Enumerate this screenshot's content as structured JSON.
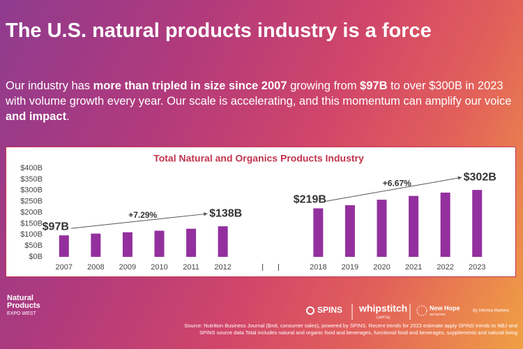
{
  "header": {
    "title": "The U.S. natural products industry is a force"
  },
  "paragraph": [
    {
      "text": "Our industry has ",
      "bold": false
    },
    {
      "text": "more than tripled in size since 2007",
      "bold": true
    },
    {
      "text": " growing from ",
      "bold": false
    },
    {
      "text": "$97B",
      "bold": true
    },
    {
      "text": " to over $300B in 2023 with volume growth every year.  Our scale is accelerating, and this momentum can amplify our voice ",
      "bold": false
    },
    {
      "text": "and impact",
      "bold": true
    },
    {
      "text": ".",
      "bold": false
    }
  ],
  "chart_data": {
    "type": "bar",
    "title": "Total Natural and Organics Products Industry",
    "categories": [
      "2007",
      "2008",
      "2009",
      "2010",
      "2011",
      "2012",
      null,
      null,
      "2018",
      "2019",
      "2020",
      "2021",
      "2022",
      "2023"
    ],
    "values": [
      97,
      105,
      111,
      118,
      127,
      138,
      null,
      null,
      219,
      233,
      258,
      275,
      290,
      302
    ],
    "value_labels": [
      "$97B",
      null,
      null,
      null,
      null,
      "$138B",
      null,
      null,
      "$219B",
      null,
      null,
      null,
      null,
      "$302B"
    ],
    "annotations": [
      "+7.29%",
      "+6.67%"
    ],
    "color": "#93309e",
    "ylim": [
      0,
      400
    ],
    "yticks": [
      {
        "value": 0,
        "label": "$0B"
      },
      {
        "value": 50,
        "label": "$50B"
      },
      {
        "value": 100,
        "label": "$100B"
      },
      {
        "value": 150,
        "label": "$150B"
      },
      {
        "value": 200,
        "label": "$200B"
      },
      {
        "value": 250,
        "label": "$250B"
      },
      {
        "value": 300,
        "label": "$300B"
      },
      {
        "value": 350,
        "label": "$350B"
      },
      {
        "value": 400,
        "label": "$400B"
      }
    ],
    "grid": false
  },
  "logos": {
    "expo_line1": "Natural",
    "expo_line2": "Products",
    "expo_line3": "EXPO WEST",
    "spins": "SPINS",
    "whipstitch": "whipstitch",
    "whipstitch_sub": "CAPITAL",
    "newhope": "New Hope",
    "newhope_sub": "NETWORK",
    "informa": "By Informa Markets"
  },
  "footer": {
    "source": "Source: Nutrition Business Journal ($mil, consumer sales), powered by SPINS.  Recent trends for 2023 estimate apply SPINS trends to NBJ and SPINS source data Total includes natural and organic food and beverages, functional food and beverages, supplements and natural living"
  }
}
